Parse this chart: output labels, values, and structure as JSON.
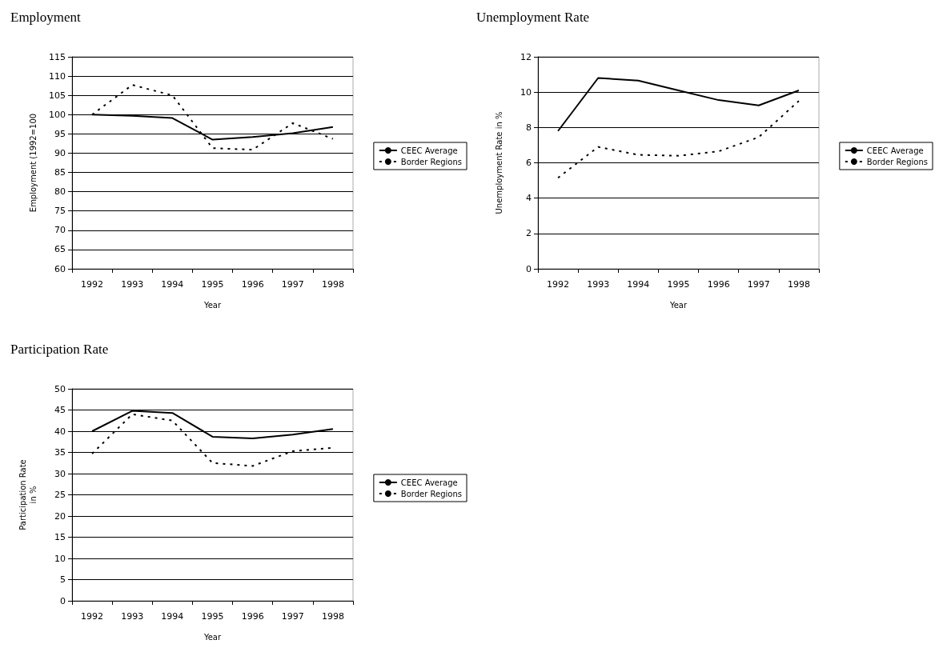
{
  "chart_data": [
    {
      "type": "line",
      "title": "Employment",
      "xlabel": "Year",
      "ylabel": "Employment (1992=100",
      "categories": [
        "1992",
        "1993",
        "1994",
        "1995",
        "1996",
        "1997",
        "1998"
      ],
      "series": [
        {
          "name": "CEEC Average",
          "color": "#000000",
          "line_style": "solid",
          "values": [
            100,
            99.7,
            99.1,
            93.5,
            94.2,
            95.2,
            96.8
          ]
        },
        {
          "name": "Border Regions",
          "color": "#000000",
          "line_style": "dotted",
          "values": [
            100,
            107.7,
            105,
            91.3,
            90.9,
            97.8,
            93.7
          ]
        }
      ],
      "ylim": [
        60,
        115
      ],
      "yticks": [
        60,
        65,
        70,
        75,
        80,
        85,
        90,
        95,
        100,
        105,
        110,
        115
      ],
      "grid": "y",
      "legend": "right",
      "marker": "none"
    },
    {
      "type": "line",
      "title": "Unemployment Rate",
      "xlabel": "Year",
      "ylabel": "Unemployment Rate in %",
      "categories": [
        "1992",
        "1993",
        "1994",
        "1995",
        "1996",
        "1997",
        "1998"
      ],
      "series": [
        {
          "name": "CEEC Average",
          "color": "#000000",
          "line_style": "solid",
          "values": [
            7.8,
            10.8,
            10.65,
            10.1,
            9.55,
            9.25,
            10.1
          ]
        },
        {
          "name": "Border Regions",
          "color": "#000000",
          "line_style": "dotted",
          "values": [
            5.15,
            6.9,
            6.45,
            6.4,
            6.65,
            7.45,
            9.5
          ]
        }
      ],
      "ylim": [
        0,
        12
      ],
      "yticks": [
        0,
        2,
        4,
        6,
        8,
        10,
        12
      ],
      "grid": "y",
      "legend": "right",
      "marker": "none"
    },
    {
      "type": "line",
      "title": "Participation Rate",
      "xlabel": "Year",
      "ylabel": "Participation Rate\nin %",
      "categories": [
        "1992",
        "1993",
        "1994",
        "1995",
        "1996",
        "1997",
        "1998"
      ],
      "series": [
        {
          "name": "CEEC Average",
          "color": "#000000",
          "line_style": "solid",
          "values": [
            40,
            44.8,
            44.3,
            38.7,
            38.3,
            39.2,
            40.5
          ]
        },
        {
          "name": "Border Regions",
          "color": "#000000",
          "line_style": "dotted",
          "values": [
            34.7,
            44,
            42.5,
            32.5,
            31.8,
            35.3,
            36.1
          ]
        }
      ],
      "ylim": [
        0,
        50
      ],
      "yticks": [
        0,
        5,
        10,
        15,
        20,
        25,
        30,
        35,
        40,
        45,
        50
      ],
      "grid": "y",
      "legend": "right",
      "marker": "none"
    }
  ]
}
